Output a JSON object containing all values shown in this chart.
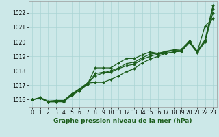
{
  "title": "Graphe pression niveau de la mer (hPa)",
  "background_color": "#cce8e8",
  "grid_color": "#aad4d4",
  "line_color": "#1a5c1a",
  "xlim": [
    -0.5,
    23.5
  ],
  "ylim": [
    1015.5,
    1022.8
  ],
  "yticks": [
    1016,
    1017,
    1018,
    1019,
    1020,
    1021,
    1022
  ],
  "xticks": [
    0,
    1,
    2,
    3,
    4,
    5,
    6,
    7,
    8,
    9,
    10,
    11,
    12,
    13,
    14,
    15,
    16,
    17,
    18,
    19,
    20,
    21,
    22,
    23
  ],
  "series": [
    [
      1016.0,
      1016.1,
      1015.85,
      1015.85,
      1015.85,
      1016.3,
      1016.6,
      1017.05,
      1018.2,
      1018.2,
      1018.2,
      1018.55,
      1018.85,
      1018.85,
      1019.1,
      1019.3,
      1019.2,
      1019.3,
      1019.4,
      1019.4,
      1020.0,
      1019.3,
      1021.1,
      1021.6
    ],
    [
      1016.0,
      1016.1,
      1015.85,
      1015.85,
      1015.9,
      1016.3,
      1016.7,
      1017.05,
      1017.8,
      1017.9,
      1017.9,
      1018.15,
      1018.35,
      1018.45,
      1018.8,
      1019.0,
      1019.15,
      1019.2,
      1019.3,
      1019.35,
      1019.95,
      1019.25,
      1020.0,
      1022.0
    ],
    [
      1016.0,
      1016.1,
      1015.85,
      1015.9,
      1015.9,
      1016.35,
      1016.7,
      1017.1,
      1017.65,
      1017.85,
      1018.0,
      1018.2,
      1018.5,
      1018.6,
      1018.9,
      1019.15,
      1019.2,
      1019.35,
      1019.45,
      1019.5,
      1020.05,
      1019.35,
      1020.05,
      1022.3
    ],
    [
      1016.0,
      1016.15,
      1015.9,
      1015.95,
      1015.95,
      1016.4,
      1016.75,
      1017.15,
      1017.2,
      1017.2,
      1017.4,
      1017.65,
      1017.95,
      1018.15,
      1018.55,
      1018.8,
      1019.0,
      1019.2,
      1019.3,
      1019.35,
      1020.05,
      1019.35,
      1020.15,
      1022.5
    ]
  ],
  "xlabel_fontsize": 6.5,
  "tick_fontsize": 5.5,
  "linewidth": 0.9,
  "markersize": 2.0
}
